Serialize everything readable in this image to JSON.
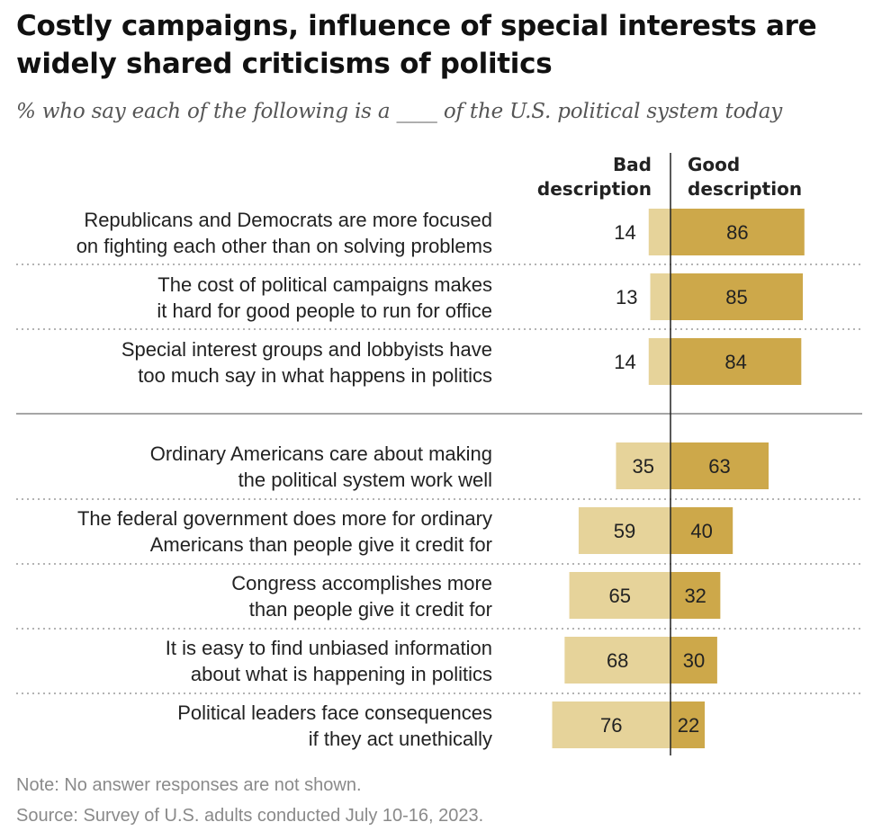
{
  "chart_data": {
    "type": "bar",
    "title": "Costly campaigns, influence of special interests are widely shared criticisms of politics",
    "subtitle": "% who say each of the following is a ____ of the U.S. political system today",
    "column_headers": {
      "bad": [
        "Bad",
        "description"
      ],
      "good": [
        "Good",
        "description"
      ]
    },
    "categories": [
      [
        "Republicans and Democrats are more focused",
        "on fighting each other than on solving problems"
      ],
      [
        "The cost of political campaigns makes",
        "it hard for good people to run for office"
      ],
      [
        "Special interest groups and lobbyists have",
        "too much say in what happens in politics"
      ],
      [
        "Ordinary Americans care about making",
        "the political system work well"
      ],
      [
        "The federal government does more for ordinary",
        "Americans than people give it credit for"
      ],
      [
        "Congress accomplishes more",
        "than people give it credit for"
      ],
      [
        "It is easy to find unbiased information",
        "about what is happening in politics"
      ],
      [
        "Political leaders face consequences",
        "if they act unethically"
      ]
    ],
    "series": [
      {
        "name": "Bad description",
        "color": "#e6d39a",
        "values": [
          14,
          13,
          14,
          35,
          59,
          65,
          68,
          76
        ]
      },
      {
        "name": "Good description",
        "color": "#cda84a",
        "values": [
          86,
          85,
          84,
          63,
          40,
          32,
          30,
          22
        ]
      }
    ],
    "groups": [
      [
        0,
        1,
        2
      ],
      [
        3,
        4,
        5,
        6,
        7
      ]
    ],
    "note": "Note: No answer responses are not shown.",
    "source": "Source: Survey of U.S. adults conducted July 10-16, 2023."
  }
}
